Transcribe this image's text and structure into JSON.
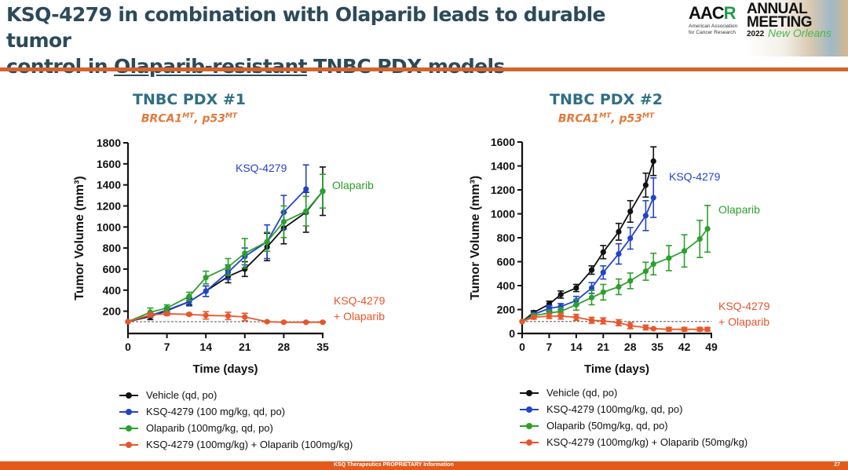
{
  "slide": {
    "title_line1": "KSQ-4279 in combination with Olaparib leads to durable tumor",
    "title_line2_pre": "control in ",
    "title_line2_underlined": "Olaparib-resistant",
    "title_line2_post": " TNBC PDX models",
    "footer_text": "KSQ Therapeutics PROPRIETARY Information",
    "page_number": "27",
    "accent_color": "#d4652f"
  },
  "logo": {
    "aacr_pre": "AAC",
    "aacr_mid": "R",
    "aacr_sub1": "American Association",
    "aacr_sub2": "for Cancer Research",
    "annual": "ANNUAL",
    "meeting": "MEETING",
    "year": "2022",
    "city": "New Orleans"
  },
  "panels": [
    {
      "title": "TNBC PDX #1",
      "sub_a": "BRCA1",
      "sup_a": "MT",
      "sub_sep": ", p53",
      "sup_b": "MT"
    },
    {
      "title": "TNBC PDX #2",
      "sub_a": "BRCA1",
      "sup_a": "MT",
      "sub_sep": ", p53",
      "sup_b": "MT"
    }
  ],
  "chart_data": [
    {
      "type": "line",
      "title": "TNBC PDX #1",
      "subtitle": "BRCA1MT, p53MT",
      "xlabel": "Time (days)",
      "ylabel": "Tumor Volume (mm3)",
      "xlim": [
        0,
        35
      ],
      "ylim": [
        0,
        1800
      ],
      "xticks": [
        0,
        7,
        14,
        21,
        28,
        35
      ],
      "yticks": [
        200,
        400,
        600,
        800,
        1000,
        1200,
        1400,
        1600,
        1800
      ],
      "reference_line": 100,
      "legend_position": "below",
      "series": [
        {
          "name": "Vehicle (qd, po)",
          "color": "#111111",
          "label": "",
          "x": [
            0,
            4,
            7,
            11,
            14,
            18,
            21,
            25,
            28,
            32,
            35
          ],
          "y": [
            100,
            150,
            205,
            290,
            390,
            530,
            600,
            810,
            990,
            1140,
            1340
          ],
          "err": [
            0,
            30,
            20,
            30,
            50,
            60,
            70,
            130,
            150,
            190,
            230
          ]
        },
        {
          "name": "KSQ-4279 (100 mg/kg, qd, po)",
          "color": "#2244cc",
          "label": "KSQ-4279",
          "x": [
            0,
            4,
            7,
            11,
            14,
            18,
            21,
            25,
            28,
            32
          ],
          "y": [
            100,
            160,
            210,
            290,
            390,
            570,
            720,
            860,
            1140,
            1360
          ],
          "err": [
            0,
            20,
            20,
            40,
            50,
            70,
            80,
            160,
            160,
            230
          ]
        },
        {
          "name": "Olaparib (100mg/kg, qd, po)",
          "color": "#2ca02c",
          "label": "Olaparib",
          "x": [
            0,
            4,
            7,
            11,
            14,
            18,
            21,
            25,
            28,
            32,
            35
          ],
          "y": [
            100,
            190,
            230,
            340,
            520,
            620,
            750,
            860,
            1050,
            1150,
            1340
          ],
          "err": [
            0,
            40,
            30,
            40,
            60,
            80,
            140,
            90,
            150,
            140,
            160
          ]
        },
        {
          "name": "KSQ-4279 (100mg/kg) + Olaparib (100mg/kg)",
          "color": "#e8562a",
          "label": "KSQ-4279\n+ Olaparib",
          "x": [
            0,
            4,
            7,
            11,
            14,
            18,
            21,
            25,
            28,
            32,
            35
          ],
          "y": [
            100,
            165,
            175,
            170,
            160,
            155,
            145,
            100,
            95,
            95,
            95
          ],
          "err": [
            0,
            20,
            15,
            10,
            35,
            35,
            35,
            5,
            5,
            5,
            5
          ]
        }
      ]
    },
    {
      "type": "line",
      "title": "TNBC PDX #2",
      "subtitle": "BRCA1MT, p53MT",
      "xlabel": "Time (days)",
      "ylabel": "Tumor Volume (mm3)",
      "xlim": [
        0,
        49
      ],
      "ylim": [
        0,
        1600
      ],
      "xticks": [
        0,
        7,
        14,
        21,
        28,
        35,
        42,
        49
      ],
      "yticks": [
        0,
        200,
        400,
        600,
        800,
        1000,
        1200,
        1400,
        1600
      ],
      "reference_line": 100,
      "legend_position": "below",
      "series": [
        {
          "name": "Vehicle (qd, po)",
          "color": "#111111",
          "label": "",
          "x": [
            0,
            3,
            7,
            10,
            14,
            18,
            21,
            25,
            28,
            32,
            34
          ],
          "y": [
            100,
            175,
            245,
            325,
            380,
            530,
            680,
            850,
            1020,
            1240,
            1440
          ],
          "err": [
            0,
            15,
            25,
            30,
            30,
            35,
            55,
            70,
            90,
            100,
            120
          ]
        },
        {
          "name": "KSQ-4279 (100mg/kg, qd, po)",
          "color": "#2244cc",
          "label": "KSQ-4279",
          "x": [
            0,
            3,
            7,
            10,
            14,
            18,
            21,
            25,
            28,
            32,
            34
          ],
          "y": [
            100,
            160,
            210,
            225,
            275,
            380,
            510,
            665,
            795,
            985,
            1135
          ],
          "err": [
            0,
            15,
            25,
            25,
            35,
            45,
            55,
            85,
            90,
            125,
            165
          ]
        },
        {
          "name": "Olaparib (50mg/kg, qd, po)",
          "color": "#2ca02c",
          "label": "Olaparib",
          "x": [
            0,
            3,
            7,
            10,
            14,
            18,
            21,
            25,
            28,
            32,
            34,
            38,
            42,
            46,
            48
          ],
          "y": [
            100,
            150,
            170,
            185,
            240,
            300,
            345,
            390,
            440,
            520,
            580,
            630,
            690,
            790,
            875
          ],
          "err": [
            0,
            15,
            25,
            30,
            45,
            60,
            65,
            65,
            65,
            75,
            90,
            105,
            135,
            155,
            195
          ]
        },
        {
          "name": "KSQ-4279 (100mg/kg) + Olaparib (50mg/kg)",
          "color": "#e8562a",
          "label": "KSQ-4279\n+ Olaparib",
          "x": [
            0,
            3,
            7,
            10,
            14,
            18,
            21,
            25,
            28,
            32,
            34,
            38,
            42,
            46,
            48
          ],
          "y": [
            100,
            135,
            145,
            145,
            135,
            110,
            105,
            90,
            65,
            50,
            40,
            35,
            35,
            35,
            35
          ],
          "err": [
            0,
            15,
            20,
            25,
            25,
            25,
            25,
            25,
            25,
            20,
            5,
            15,
            15,
            15,
            15
          ]
        }
      ]
    }
  ]
}
